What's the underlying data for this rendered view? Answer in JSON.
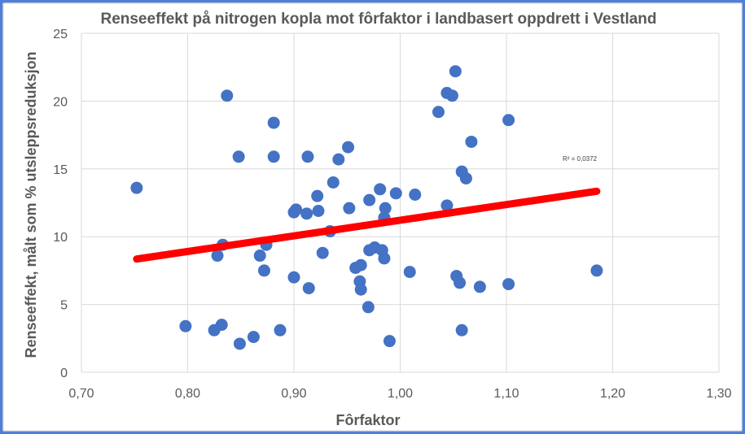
{
  "chart_data": {
    "type": "scatter",
    "title": "Renseeffekt på nitrogen kopla mot fôrfaktor i landbasert oppdrett i Vestland",
    "xlabel": "Fôrfaktor",
    "ylabel": "Renseeffekt, målt som % utsleppsreduksjon",
    "xlim": [
      0.7,
      1.3
    ],
    "ylim": [
      0,
      25
    ],
    "x_ticks": [
      "0,70",
      "0,80",
      "0,90",
      "1,00",
      "1,10",
      "1,20",
      "1,30"
    ],
    "y_ticks": [
      "0",
      "5",
      "10",
      "15",
      "20",
      "25"
    ],
    "grid": true,
    "points": [
      [
        0.752,
        13.6
      ],
      [
        0.798,
        3.4
      ],
      [
        0.825,
        3.1
      ],
      [
        0.828,
        8.6
      ],
      [
        0.832,
        3.5
      ],
      [
        0.833,
        9.4
      ],
      [
        0.837,
        20.4
      ],
      [
        0.848,
        15.9
      ],
      [
        0.849,
        2.1
      ],
      [
        0.862,
        2.6
      ],
      [
        0.868,
        8.6
      ],
      [
        0.872,
        7.5
      ],
      [
        0.874,
        9.4
      ],
      [
        0.881,
        18.4
      ],
      [
        0.881,
        15.9
      ],
      [
        0.887,
        3.1
      ],
      [
        0.9,
        7.0
      ],
      [
        0.9,
        11.8
      ],
      [
        0.902,
        12.0
      ],
      [
        0.912,
        11.7
      ],
      [
        0.913,
        15.9
      ],
      [
        0.914,
        6.2
      ],
      [
        0.922,
        13.0
      ],
      [
        0.923,
        11.9
      ],
      [
        0.927,
        8.8
      ],
      [
        0.934,
        10.4
      ],
      [
        0.937,
        14.0
      ],
      [
        0.942,
        15.7
      ],
      [
        0.951,
        16.6
      ],
      [
        0.952,
        12.1
      ],
      [
        0.958,
        7.7
      ],
      [
        0.962,
        6.7
      ],
      [
        0.963,
        7.9
      ],
      [
        0.963,
        6.1
      ],
      [
        0.97,
        4.8
      ],
      [
        0.971,
        12.7
      ],
      [
        0.971,
        9.0
      ],
      [
        0.976,
        9.2
      ],
      [
        0.981,
        13.5
      ],
      [
        0.983,
        9.0
      ],
      [
        0.985,
        8.4
      ],
      [
        0.985,
        11.4
      ],
      [
        0.986,
        12.1
      ],
      [
        0.99,
        2.3
      ],
      [
        0.996,
        13.2
      ],
      [
        1.009,
        7.4
      ],
      [
        1.014,
        13.1
      ],
      [
        1.036,
        19.2
      ],
      [
        1.044,
        20.6
      ],
      [
        1.044,
        12.3
      ],
      [
        1.049,
        20.4
      ],
      [
        1.052,
        22.2
      ],
      [
        1.053,
        7.1
      ],
      [
        1.056,
        6.6
      ],
      [
        1.058,
        14.8
      ],
      [
        1.058,
        3.1
      ],
      [
        1.062,
        14.3
      ],
      [
        1.067,
        17.0
      ],
      [
        1.075,
        6.3
      ],
      [
        1.102,
        18.6
      ],
      [
        1.102,
        6.5
      ],
      [
        1.185,
        7.5
      ]
    ],
    "trendline": {
      "x": [
        0.752,
        1.185
      ],
      "y": [
        8.35,
        13.35
      ]
    },
    "r2_label": "R² = 0,0372",
    "colors": {
      "points": "#4472c4",
      "trendline": "#ff0000",
      "grid": "#d9d9d9",
      "text": "#595959",
      "border": "#4f7fd8"
    }
  }
}
